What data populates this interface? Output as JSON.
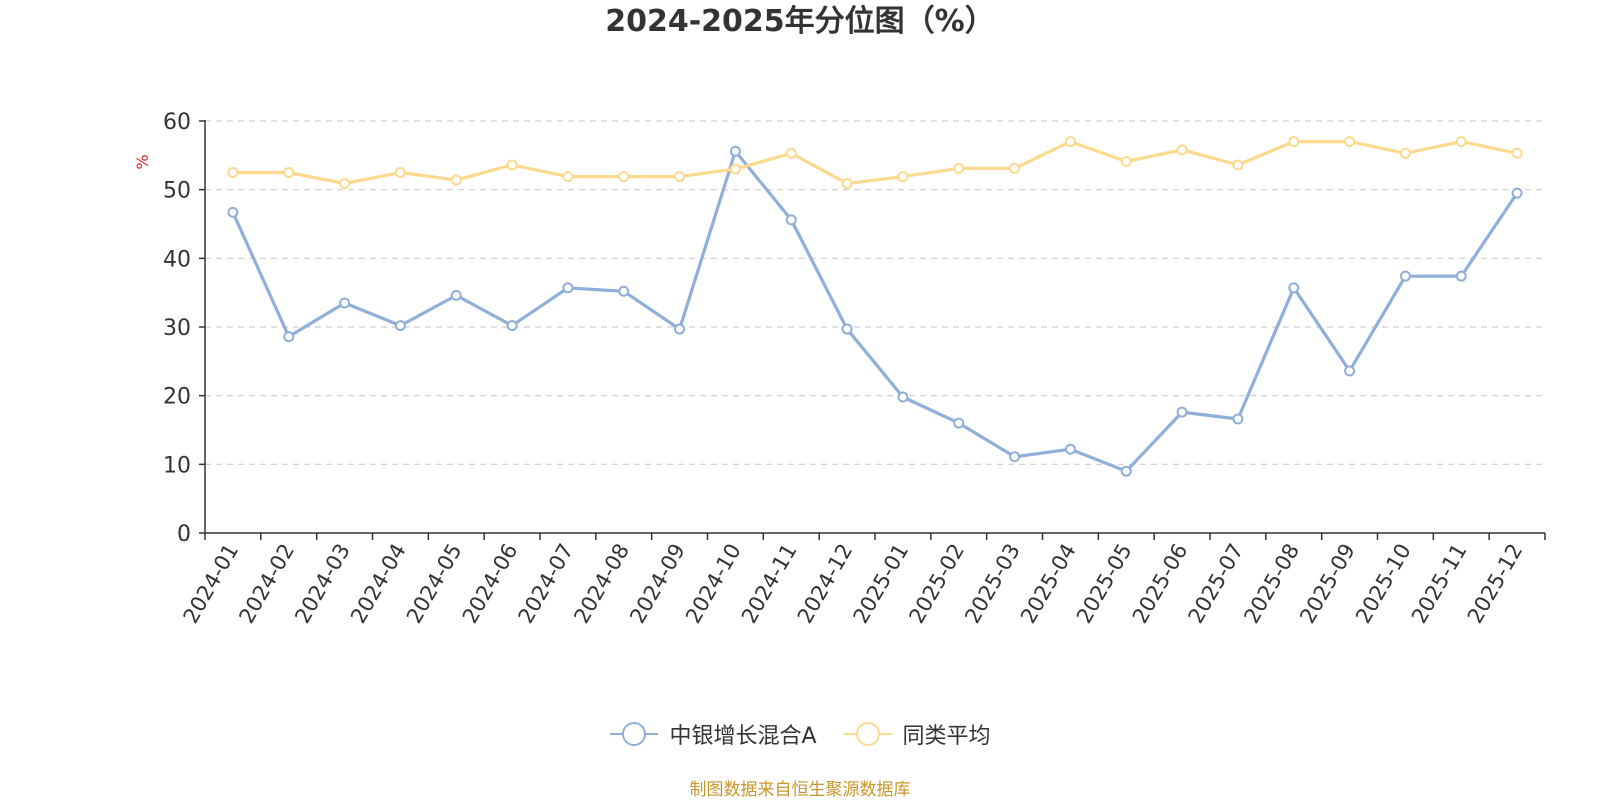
{
  "chart_data": {
    "type": "line",
    "title": "2024-2025年分位图（%）",
    "ylabel": "%",
    "ylim": [
      0,
      60
    ],
    "yticks": [
      0,
      10,
      20,
      30,
      40,
      50,
      60
    ],
    "grid": true,
    "legend_position": "bottom",
    "categories": [
      "2024-01",
      "2024-02",
      "2024-03",
      "2024-04",
      "2024-05",
      "2024-06",
      "2024-07",
      "2024-08",
      "2024-09",
      "2024-10",
      "2024-11",
      "2024-12",
      "2025-01",
      "2025-02",
      "2025-03",
      "2025-04",
      "2025-05",
      "2025-06",
      "2025-07",
      "2025-08",
      "2025-09",
      "2025-10",
      "2025-11",
      "2025-12"
    ],
    "series": [
      {
        "name": "中银增长混合A",
        "color": "#8fafd9",
        "values": [
          46.7,
          28.6,
          33.5,
          30.2,
          34.6,
          30.2,
          35.7,
          35.2,
          29.7,
          55.6,
          45.6,
          29.7,
          19.8,
          16.0,
          11.1,
          12.2,
          9.0,
          17.6,
          16.6,
          35.7,
          23.6,
          37.4,
          37.4,
          49.5
        ]
      },
      {
        "name": "同类平均",
        "color": "#fcd98e",
        "values": [
          52.5,
          52.5,
          50.9,
          52.5,
          51.4,
          53.6,
          51.9,
          51.9,
          51.9,
          53.0,
          55.3,
          50.9,
          51.9,
          53.1,
          53.1,
          57.0,
          54.1,
          55.8,
          53.6,
          57.0,
          57.0,
          55.3,
          57.0,
          55.3
        ]
      }
    ]
  },
  "source": "制图数据来自恒生聚源数据库",
  "colors": {
    "axis": "#333333",
    "grid": "#cccccc",
    "ylabel": "#e02020",
    "source": "#c8962a"
  }
}
